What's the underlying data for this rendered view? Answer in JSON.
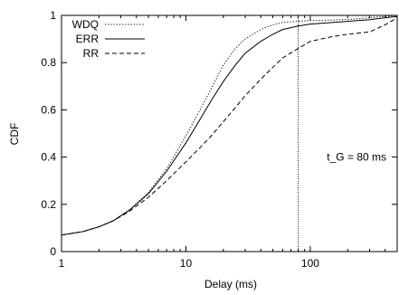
{
  "chart_data": {
    "type": "line",
    "xscale": "log",
    "xlabel": "Delay (ms)",
    "ylabel": "CDF",
    "xlim": [
      1,
      500
    ],
    "ylim": [
      0,
      1
    ],
    "grid": false,
    "legend_position": "top-left",
    "x_ticks": [
      {
        "value": 1,
        "label": "1"
      },
      {
        "value": 10,
        "label": "10"
      },
      {
        "value": 100,
        "label": "100"
      }
    ],
    "y_ticks": [
      {
        "value": 0,
        "label": "0"
      },
      {
        "value": 0.2,
        "label": "0.2"
      },
      {
        "value": 0.4,
        "label": "0.4"
      },
      {
        "value": 0.6,
        "label": "0.6"
      },
      {
        "value": 0.8,
        "label": "0.8"
      },
      {
        "value": 1,
        "label": "1"
      }
    ],
    "series": [
      {
        "name": "WDQ",
        "style": "dotted",
        "points": [
          [
            1,
            0.07
          ],
          [
            1.5,
            0.085
          ],
          [
            2,
            0.105
          ],
          [
            2.6,
            0.13
          ],
          [
            3.5,
            0.175
          ],
          [
            5,
            0.25
          ],
          [
            7,
            0.35
          ],
          [
            10,
            0.49
          ],
          [
            13,
            0.6
          ],
          [
            16,
            0.69
          ],
          [
            20,
            0.79
          ],
          [
            25,
            0.86
          ],
          [
            30,
            0.9
          ],
          [
            40,
            0.94
          ],
          [
            50,
            0.96
          ],
          [
            60,
            0.97
          ],
          [
            80,
            0.975
          ],
          [
            100,
            0.978
          ],
          [
            150,
            0.98
          ],
          [
            200,
            0.983
          ],
          [
            300,
            0.99
          ],
          [
            400,
            0.995
          ],
          [
            500,
            1.0
          ]
        ]
      },
      {
        "name": "ERR",
        "style": "solid",
        "points": [
          [
            1,
            0.07
          ],
          [
            1.5,
            0.085
          ],
          [
            2,
            0.105
          ],
          [
            2.6,
            0.13
          ],
          [
            3.5,
            0.175
          ],
          [
            5,
            0.245
          ],
          [
            7,
            0.34
          ],
          [
            10,
            0.46
          ],
          [
            13,
            0.56
          ],
          [
            16,
            0.64
          ],
          [
            20,
            0.72
          ],
          [
            25,
            0.79
          ],
          [
            30,
            0.84
          ],
          [
            40,
            0.89
          ],
          [
            50,
            0.92
          ],
          [
            60,
            0.94
          ],
          [
            80,
            0.955
          ],
          [
            100,
            0.963
          ],
          [
            150,
            0.97
          ],
          [
            200,
            0.975
          ],
          [
            300,
            0.982
          ],
          [
            400,
            0.99
          ],
          [
            500,
            0.995
          ]
        ]
      },
      {
        "name": "RR",
        "style": "dashed",
        "points": [
          [
            1,
            0.07
          ],
          [
            1.5,
            0.085
          ],
          [
            2,
            0.105
          ],
          [
            2.6,
            0.13
          ],
          [
            3.5,
            0.17
          ],
          [
            5,
            0.23
          ],
          [
            7,
            0.3
          ],
          [
            10,
            0.38
          ],
          [
            13,
            0.44
          ],
          [
            16,
            0.49
          ],
          [
            20,
            0.55
          ],
          [
            25,
            0.61
          ],
          [
            30,
            0.66
          ],
          [
            40,
            0.73
          ],
          [
            50,
            0.78
          ],
          [
            60,
            0.82
          ],
          [
            80,
            0.86
          ],
          [
            100,
            0.89
          ],
          [
            150,
            0.91
          ],
          [
            200,
            0.92
          ],
          [
            300,
            0.93
          ],
          [
            400,
            0.96
          ],
          [
            500,
            0.99
          ]
        ]
      }
    ],
    "annotations": [
      {
        "type": "vertical-line",
        "x": 80,
        "style": "dotted",
        "text": "t_G = 80 ms",
        "text_y": 0.4
      }
    ]
  }
}
